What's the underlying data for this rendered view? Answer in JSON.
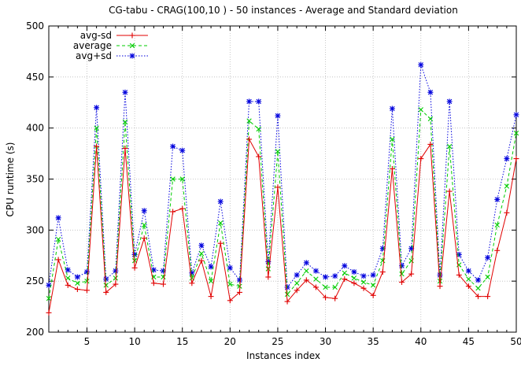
{
  "chart_data": {
    "type": "line",
    "title": "CG-tabu - CRAG(100,10 ) - 50 instances - Average and Standard deviation",
    "xlabel": "Instances index",
    "ylabel": "CPU runtime (s)",
    "xlim": [
      1,
      50
    ],
    "ylim": [
      200,
      500
    ],
    "xticks": [
      5,
      10,
      15,
      20,
      25,
      30,
      35,
      40,
      45,
      50
    ],
    "yticks": [
      200,
      250,
      300,
      350,
      400,
      450,
      500
    ],
    "grid": true,
    "legend_position": "top-left",
    "x": [
      1,
      2,
      3,
      4,
      5,
      6,
      7,
      8,
      9,
      10,
      11,
      12,
      13,
      14,
      15,
      16,
      17,
      18,
      19,
      20,
      21,
      22,
      23,
      24,
      25,
      26,
      27,
      28,
      29,
      30,
      31,
      32,
      33,
      34,
      35,
      36,
      37,
      38,
      39,
      40,
      41,
      42,
      43,
      44,
      45,
      46,
      47,
      48,
      49,
      50
    ],
    "series": [
      {
        "name": "avg-sd",
        "color": "#e00000",
        "marker": "+",
        "dash": "solid",
        "values": [
          219,
          271,
          246,
          242,
          241,
          382,
          239,
          247,
          380,
          263,
          292,
          248,
          247,
          318,
          321,
          248,
          270,
          235,
          287,
          231,
          239,
          389,
          372,
          254,
          342,
          230,
          241,
          251,
          244,
          234,
          233,
          252,
          248,
          243,
          236,
          259,
          360,
          249,
          257,
          370,
          384,
          245,
          338,
          256,
          245,
          235,
          235,
          280,
          317,
          370
        ]
      },
      {
        "name": "average",
        "color": "#00cc00",
        "marker": "x",
        "dash": "dash",
        "values": [
          233,
          291,
          253,
          248,
          250,
          400,
          246,
          253,
          406,
          270,
          305,
          254,
          254,
          350,
          350,
          253,
          277,
          250,
          307,
          247,
          245,
          407,
          399,
          262,
          377,
          237,
          248,
          260,
          252,
          244,
          244,
          258,
          253,
          249,
          246,
          270,
          389,
          257,
          270,
          418,
          409,
          250,
          382,
          266,
          252,
          243,
          254,
          305,
          343,
          395
        ]
      },
      {
        "name": "avg+sd",
        "color": "#0000dd",
        "marker": "*",
        "dash": "dot",
        "values": [
          246,
          312,
          261,
          254,
          259,
          420,
          252,
          260,
          435,
          276,
          319,
          261,
          260,
          382,
          378,
          258,
          285,
          264,
          328,
          263,
          251,
          426,
          426,
          269,
          412,
          244,
          256,
          268,
          260,
          254,
          255,
          265,
          259,
          255,
          256,
          282,
          419,
          265,
          282,
          462,
          435,
          256,
          426,
          276,
          260,
          251,
          273,
          330,
          370,
          413
        ]
      }
    ]
  }
}
